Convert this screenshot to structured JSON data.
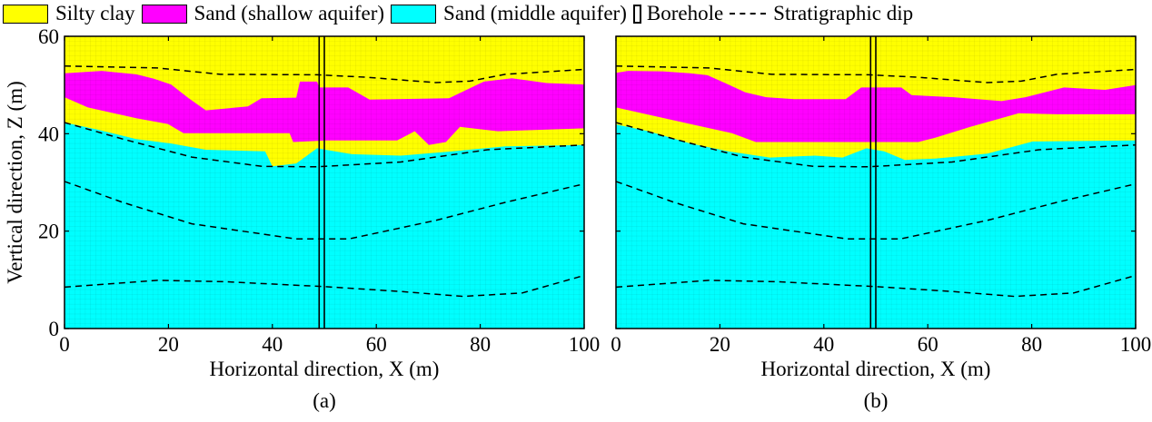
{
  "legend": {
    "items": [
      {
        "label": "Silty clay",
        "color": "#ffff00",
        "kind": "swatch"
      },
      {
        "label": "Sand (shallow aquifer)",
        "color": "#ff00ff",
        "kind": "swatch"
      },
      {
        "label": "Sand (middle aquifer)",
        "color": "#00ffff",
        "kind": "swatch"
      },
      {
        "label": "Borehole",
        "kind": "borehole"
      },
      {
        "label": "Stratigraphic dip",
        "kind": "dashed-line"
      }
    ]
  },
  "chart_data": [
    {
      "type": "area",
      "panel_label": "(a)",
      "xlabel": "Horizontal direction, X (m)",
      "ylabel": "Vertical direction, Z (m)",
      "xlim": [
        0,
        100
      ],
      "ylim": [
        0,
        60
      ],
      "xticks": [
        0,
        20,
        40,
        60,
        80,
        100
      ],
      "yticks": [
        0,
        20,
        40,
        60
      ],
      "grid": true,
      "background_unit": "Silty clay",
      "borehole_x": [
        49,
        50
      ],
      "shallow_aquifer": {
        "top": [
          [
            0,
            52.4
          ],
          [
            7.2,
            52.9
          ],
          [
            13.8,
            52.2
          ],
          [
            17.2,
            51.3
          ],
          [
            20.5,
            50.1
          ],
          [
            23.9,
            47.3
          ],
          [
            27.2,
            44.8
          ],
          [
            35.3,
            45.6
          ],
          [
            37.9,
            47.3
          ],
          [
            44.6,
            47.4
          ],
          [
            45.3,
            50.7
          ],
          [
            48.6,
            50.7
          ],
          [
            49,
            49.5
          ],
          [
            54.6,
            49.5
          ],
          [
            58.7,
            47
          ],
          [
            74,
            47.3
          ],
          [
            80.7,
            50.7
          ],
          [
            86.1,
            51.4
          ],
          [
            92.8,
            50.4
          ],
          [
            100,
            50.1
          ]
        ],
        "bottom": [
          [
            0,
            47.5
          ],
          [
            4.5,
            45.4
          ],
          [
            13.8,
            43.2
          ],
          [
            19.9,
            42
          ],
          [
            22.9,
            40.1
          ],
          [
            43.3,
            40.1
          ],
          [
            44,
            38.3
          ],
          [
            50.6,
            38.6
          ],
          [
            64,
            38.6
          ],
          [
            67.4,
            40.5
          ],
          [
            70.1,
            37.7
          ],
          [
            73.4,
            38.3
          ],
          [
            76.1,
            41.4
          ],
          [
            83.4,
            40.5
          ],
          [
            100,
            41.1
          ]
        ]
      },
      "middle_aquifer_top": [
        [
          0,
          42.3
        ],
        [
          6.5,
          40.8
        ],
        [
          13.8,
          38.9
        ],
        [
          20.5,
          38
        ],
        [
          27.2,
          36.7
        ],
        [
          38.6,
          36.4
        ],
        [
          40,
          33.3
        ],
        [
          44.6,
          33.9
        ],
        [
          48.6,
          37
        ],
        [
          55.3,
          35.8
        ],
        [
          64.7,
          35.5
        ],
        [
          74.7,
          36.4
        ],
        [
          84.8,
          37.4
        ],
        [
          100,
          37.7
        ]
      ],
      "dip_lines": [
        [
          [
            0,
            53.9
          ],
          [
            17.9,
            53.5
          ],
          [
            30,
            52.2
          ],
          [
            48.6,
            52.1
          ],
          [
            58,
            51.6
          ],
          [
            71.4,
            50.5
          ],
          [
            78,
            50.8
          ],
          [
            84.8,
            52.2
          ],
          [
            100,
            53.2
          ]
        ],
        [
          [
            0,
            42.3
          ],
          [
            11.2,
            38.9
          ],
          [
            24.5,
            35.2
          ],
          [
            38,
            33.3
          ],
          [
            48.6,
            33.2
          ],
          [
            64.7,
            34.2
          ],
          [
            81.4,
            36.7
          ],
          [
            100,
            37.7
          ]
        ],
        [
          [
            0,
            30.2
          ],
          [
            11.2,
            25.9
          ],
          [
            24.5,
            21.5
          ],
          [
            44.6,
            18.4
          ],
          [
            54.7,
            18.4
          ],
          [
            71.4,
            22.2
          ],
          [
            84.8,
            25.9
          ],
          [
            100,
            29.7
          ]
        ],
        [
          [
            0,
            8.5
          ],
          [
            17.9,
            9.9
          ],
          [
            31.2,
            9.6
          ],
          [
            50,
            8.6
          ],
          [
            64.7,
            7.6
          ],
          [
            76.7,
            6.6
          ],
          [
            88.1,
            7.3
          ],
          [
            100,
            10.9
          ]
        ]
      ]
    },
    {
      "type": "area",
      "panel_label": "(b)",
      "xlabel": "Horizontal direction, X (m)",
      "xlim": [
        0,
        100
      ],
      "ylim": [
        0,
        60
      ],
      "xticks": [
        0,
        20,
        40,
        60,
        80,
        100
      ],
      "yticks": [
        0,
        20,
        40,
        60
      ],
      "grid": true,
      "background_unit": "Silty clay",
      "borehole_x": [
        49,
        50
      ],
      "shallow_aquifer": {
        "top": [
          [
            0,
            52.5
          ],
          [
            2.3,
            52.9
          ],
          [
            9,
            52.8
          ],
          [
            14.3,
            52.4
          ],
          [
            17.6,
            52
          ],
          [
            21,
            50.4
          ],
          [
            24.9,
            48.5
          ],
          [
            28.9,
            47.5
          ],
          [
            34.3,
            47.1
          ],
          [
            44.2,
            47.1
          ],
          [
            47.2,
            49.5
          ],
          [
            54.9,
            49.5
          ],
          [
            56.9,
            47.9
          ],
          [
            64.9,
            47.5
          ],
          [
            74.2,
            46.7
          ],
          [
            78.8,
            47.5
          ],
          [
            86.2,
            49.5
          ],
          [
            94.1,
            49
          ],
          [
            100,
            50
          ]
        ],
        "bottom": [
          [
            0,
            45.4
          ],
          [
            5,
            44.2
          ],
          [
            14.3,
            42
          ],
          [
            22.3,
            40.1
          ],
          [
            26.9,
            38.3
          ],
          [
            58.2,
            38.3
          ],
          [
            61.5,
            39.2
          ],
          [
            68.2,
            41.4
          ],
          [
            77.5,
            44.2
          ],
          [
            84.8,
            44
          ],
          [
            100,
            44
          ]
        ]
      },
      "middle_aquifer_top": [
        [
          0,
          41.9
        ],
        [
          6.3,
          40.5
        ],
        [
          14.3,
          38
        ],
        [
          21.6,
          36.4
        ],
        [
          29.6,
          35.1
        ],
        [
          38.3,
          35.5
        ],
        [
          43.6,
          35.1
        ],
        [
          48.2,
          37
        ],
        [
          51.6,
          36.4
        ],
        [
          55.6,
          34.6
        ],
        [
          61.5,
          34.9
        ],
        [
          71.5,
          35.9
        ],
        [
          80.2,
          38.4
        ],
        [
          100,
          38.6
        ]
      ],
      "dip_lines": [
        [
          [
            0,
            53.9
          ],
          [
            17.9,
            53.5
          ],
          [
            30,
            52.2
          ],
          [
            48.6,
            52.1
          ],
          [
            58,
            51.6
          ],
          [
            71.4,
            50.5
          ],
          [
            78,
            50.8
          ],
          [
            84.8,
            52.2
          ],
          [
            100,
            53.2
          ]
        ],
        [
          [
            0,
            42.3
          ],
          [
            11.2,
            38.9
          ],
          [
            24.5,
            35.2
          ],
          [
            38,
            33.3
          ],
          [
            48.6,
            33.2
          ],
          [
            64.7,
            34.2
          ],
          [
            81.4,
            36.7
          ],
          [
            100,
            37.7
          ]
        ],
        [
          [
            0,
            30.2
          ],
          [
            11.2,
            25.9
          ],
          [
            24.5,
            21.5
          ],
          [
            44.6,
            18.4
          ],
          [
            54.7,
            18.4
          ],
          [
            71.4,
            22.2
          ],
          [
            84.8,
            25.9
          ],
          [
            100,
            29.7
          ]
        ],
        [
          [
            0,
            8.5
          ],
          [
            17.9,
            9.9
          ],
          [
            31.2,
            9.6
          ],
          [
            50,
            8.6
          ],
          [
            64.7,
            7.6
          ],
          [
            76.7,
            6.6
          ],
          [
            88.1,
            7.3
          ],
          [
            100,
            10.9
          ]
        ]
      ]
    }
  ]
}
